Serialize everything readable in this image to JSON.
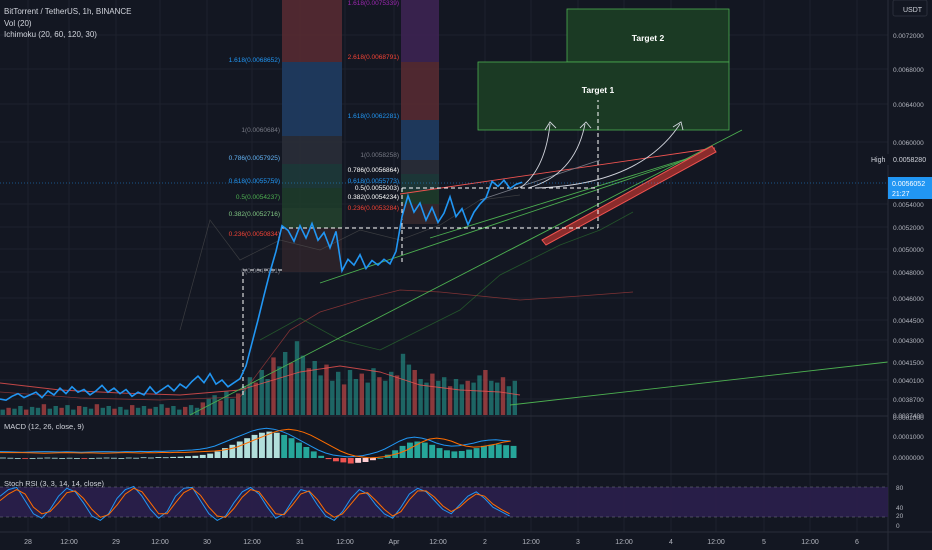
{
  "header": {
    "symbol": "BitTorrent / TetherUS, 1h, BINANCE",
    "vol": "Vol (20)",
    "ichimoku": "Ichimoku (20, 60, 120, 30)",
    "macd": "MACD (12, 26, close, 9)",
    "stoch": "Stoch RSI (3, 3, 14, 14, close)",
    "currency_top": "USDT"
  },
  "colors": {
    "bg": "#131722",
    "price_line": "#2196f3",
    "up": "#26a69a",
    "down": "#ef5350",
    "target_fill": "#1b3a24",
    "target_border": "#4caf50"
  },
  "targets": [
    {
      "label": "Target 2"
    },
    {
      "label": "Target 1"
    }
  ],
  "price_labels": {
    "high": "High",
    "high_value": "0.0058280",
    "current": "0.0056052",
    "countdown": "21:27"
  },
  "fib_left": [
    {
      "text": "1.618(0.0068652)",
      "color": "#2196f3"
    },
    {
      "text": "1(0.0060684)",
      "color": "#787b86"
    },
    {
      "text": "0.786(0.0057925)",
      "color": "#64b5f6"
    },
    {
      "text": "0.618(0.0055759)",
      "color": "#2196f3"
    },
    {
      "text": "0.5(0.0054237)",
      "color": "#4caf50"
    },
    {
      "text": "0.382(0.0052716)",
      "color": "#81c784"
    },
    {
      "text": "0.236(0.0050834)",
      "color": "#f44336"
    },
    {
      "text": "0(0.0047791)",
      "color": "#787b86"
    }
  ],
  "fib_mid": [
    {
      "text": "1.618(0.0075339)",
      "color": "#9c27b0"
    },
    {
      "text": "2.618(0.0068791)",
      "color": "#f44336"
    },
    {
      "text": "1.618(0.0062281)",
      "color": "#2196f3"
    },
    {
      "text": "1(0.0058258)",
      "color": "#787b86"
    },
    {
      "text": "0.786(0.0056864)",
      "color": "#ffffff"
    },
    {
      "text": "0.618(0.0055773)",
      "color": "#2196f3"
    },
    {
      "text": "0.5(0.0055003)",
      "color": "#ffffff"
    },
    {
      "text": "0.382(0.0054234)",
      "color": "#ffffff"
    },
    {
      "text": "0.236(0.0053284)",
      "color": "#f44336"
    }
  ],
  "chart_data": {
    "type": "line",
    "title": "BitTorrent / TetherUS, 1h, BINANCE",
    "price_axis": [
      "0.0072000",
      "0.0068000",
      "0.0064000",
      "0.0060000",
      "0.0058280",
      "0.0056052",
      "0.0054000",
      "0.0052000",
      "0.0050000",
      "0.0048000",
      "0.0046000",
      "0.0044500",
      "0.0043000",
      "0.0041500",
      "0.0040100",
      "0.0038700",
      "0.0037400"
    ],
    "macd_axis": [
      "0.0002000",
      "0.0001000",
      "0.0000000"
    ],
    "stoch_axis": [
      "80",
      "40",
      "20",
      "0"
    ],
    "time_axis": [
      "28",
      "12:00",
      "29",
      "12:00",
      "30",
      "12:00",
      "31",
      "12:00",
      "Apr",
      "12:00",
      "2",
      "12:00",
      "3",
      "12:00",
      "4",
      "12:00",
      "5",
      "12:00",
      "6"
    ],
    "price_series": [
      [
        0,
        0.00387
      ],
      [
        6,
        0.00386
      ],
      [
        12,
        0.00389
      ],
      [
        18,
        0.00391
      ],
      [
        24,
        0.00388
      ],
      [
        30,
        0.0039
      ],
      [
        36,
        0.00392
      ],
      [
        42,
        0.00388
      ],
      [
        48,
        0.00393
      ],
      [
        54,
        0.0039
      ],
      [
        60,
        0.00395
      ],
      [
        66,
        0.00391
      ],
      [
        72,
        0.00396
      ],
      [
        78,
        0.00392
      ],
      [
        84,
        0.00394
      ],
      [
        90,
        0.0039
      ],
      [
        96,
        0.00393
      ],
      [
        102,
        0.00397
      ],
      [
        108,
        0.00392
      ],
      [
        114,
        0.00395
      ],
      [
        120,
        0.00391
      ],
      [
        126,
        0.00394
      ],
      [
        132,
        0.00389
      ],
      [
        138,
        0.00392
      ],
      [
        144,
        0.0039
      ],
      [
        150,
        0.00396
      ],
      [
        156,
        0.00391
      ],
      [
        162,
        0.00394
      ],
      [
        168,
        0.00397
      ],
      [
        174,
        0.00393
      ],
      [
        180,
        0.00398
      ],
      [
        186,
        0.00395
      ],
      [
        192,
        0.004
      ],
      [
        198,
        0.00404
      ],
      [
        204,
        0.00399
      ],
      [
        210,
        0.00406
      ],
      [
        216,
        0.00398
      ],
      [
        222,
        0.00401
      ],
      [
        228,
        0.00396
      ],
      [
        234,
        0.00399
      ],
      [
        240,
        0.00402
      ],
      [
        246,
        0.00412
      ],
      [
        252,
        0.00428
      ],
      [
        258,
        0.00445
      ],
      [
        264,
        0.00462
      ],
      [
        270,
        0.0048
      ],
      [
        276,
        0.00498
      ],
      [
        282,
        0.00521
      ],
      [
        288,
        0.00517
      ],
      [
        294,
        0.00507
      ],
      [
        300,
        0.00521
      ],
      [
        306,
        0.0051
      ],
      [
        312,
        0.00523
      ],
      [
        318,
        0.00508
      ],
      [
        324,
        0.00515
      ],
      [
        330,
        0.00501
      ],
      [
        336,
        0.00516
      ],
      [
        342,
        0.00481
      ],
      [
        348,
        0.00491
      ],
      [
        354,
        0.00486
      ],
      [
        360,
        0.00495
      ],
      [
        366,
        0.00483
      ],
      [
        372,
        0.0049
      ],
      [
        378,
        0.00486
      ],
      [
        384,
        0.00491
      ],
      [
        390,
        0.00487
      ],
      [
        396,
        0.00498
      ],
      [
        402,
        0.00529
      ],
      [
        408,
        0.00548
      ],
      [
        414,
        0.00533
      ],
      [
        420,
        0.00541
      ],
      [
        426,
        0.00526
      ],
      [
        432,
        0.00537
      ],
      [
        438,
        0.00524
      ],
      [
        444,
        0.00532
      ],
      [
        450,
        0.00547
      ],
      [
        456,
        0.00529
      ],
      [
        462,
        0.00536
      ],
      [
        468,
        0.00522
      ],
      [
        474,
        0.00533
      ],
      [
        480,
        0.0054
      ],
      [
        486,
        0.00546
      ],
      [
        492,
        0.00562
      ],
      [
        498,
        0.00557
      ],
      [
        504,
        0.00563
      ],
      [
        510,
        0.00555
      ],
      [
        516,
        0.00559
      ],
      [
        522,
        0.00561
      ]
    ],
    "volume": [
      0.3,
      0.4,
      0.35,
      0.5,
      0.3,
      0.45,
      0.4,
      0.6,
      0.35,
      0.5,
      0.4,
      0.55,
      0.3,
      0.5,
      0.45,
      0.35,
      0.6,
      0.4,
      0.5,
      0.35,
      0.45,
      0.3,
      0.55,
      0.4,
      0.5,
      0.35,
      0.45,
      0.6,
      0.4,
      0.5,
      0.3,
      0.45,
      0.55,
      0.4,
      0.7,
      0.9,
      1.1,
      0.8,
      1.3,
      0.9,
      1.2,
      1.6,
      2.1,
      1.8,
      2.5,
      2.0,
      3.2,
      2.7,
      3.5,
      2.9,
      4.1,
      3.3,
      2.6,
      3.0,
      2.2,
      2.8,
      1.9,
      2.4,
      1.7,
      2.5,
      2.0,
      2.3,
      1.8,
      2.6,
      2.1,
      1.9,
      2.4,
      2.2,
      3.4,
      2.8,
      2.5,
      2.0,
      1.8,
      2.3,
      1.9,
      2.1,
      1.6,
      2.0,
      1.7,
      1.9,
      1.8,
      2.2,
      2.5,
      1.9,
      1.8,
      2.1,
      1.6,
      1.9
    ],
    "macd": [
      0.02,
      0.01,
      0.0,
      -0.01,
      0.0,
      0.01,
      0.02,
      0.01,
      0.0,
      0.01,
      0.0,
      -0.01,
      0.0,
      0.01,
      0.02,
      0.01,
      0.0,
      0.02,
      0.01,
      0.03,
      0.02,
      0.04,
      0.03,
      0.05,
      0.06,
      0.08,
      0.1,
      0.14,
      0.2,
      0.3,
      0.45,
      0.6,
      0.75,
      0.9,
      1.05,
      1.15,
      1.2,
      1.15,
      1.05,
      0.9,
      0.7,
      0.5,
      0.3,
      0.1,
      -0.05,
      -0.15,
      -0.2,
      -0.25,
      -0.22,
      -0.18,
      -0.1,
      0.0,
      0.15,
      0.35,
      0.55,
      0.7,
      0.75,
      0.7,
      0.6,
      0.45,
      0.35,
      0.3,
      0.32,
      0.38,
      0.45,
      0.55,
      0.6,
      0.62,
      0.58,
      0.55
    ],
    "stoch_k": [
      70,
      85,
      90,
      60,
      30,
      20,
      40,
      70,
      88,
      80,
      55,
      25,
      15,
      30,
      65,
      85,
      92,
      70,
      40,
      20,
      35,
      70,
      88,
      90,
      60,
      30,
      15,
      25,
      55,
      80,
      90,
      75,
      45,
      20,
      30,
      60,
      85,
      80,
      50,
      25,
      15,
      35,
      65,
      85,
      75,
      50,
      30,
      20,
      45,
      75,
      88,
      80,
      60,
      40,
      30,
      50,
      70,
      80,
      65,
      45,
      35,
      25
    ],
    "stoch_d": [
      60,
      75,
      85,
      75,
      45,
      30,
      35,
      55,
      78,
      82,
      65,
      40,
      22,
      28,
      50,
      75,
      88,
      80,
      55,
      30,
      30,
      55,
      78,
      88,
      72,
      45,
      25,
      22,
      42,
      68,
      85,
      80,
      55,
      30,
      28,
      50,
      75,
      82,
      62,
      35,
      22,
      30,
      52,
      75,
      78,
      60,
      40,
      25,
      35,
      62,
      82,
      82,
      68,
      48,
      35,
      45,
      62,
      75,
      70,
      52,
      40,
      30
    ],
    "ylim": [
      0.0037,
      0.0077
    ]
  }
}
